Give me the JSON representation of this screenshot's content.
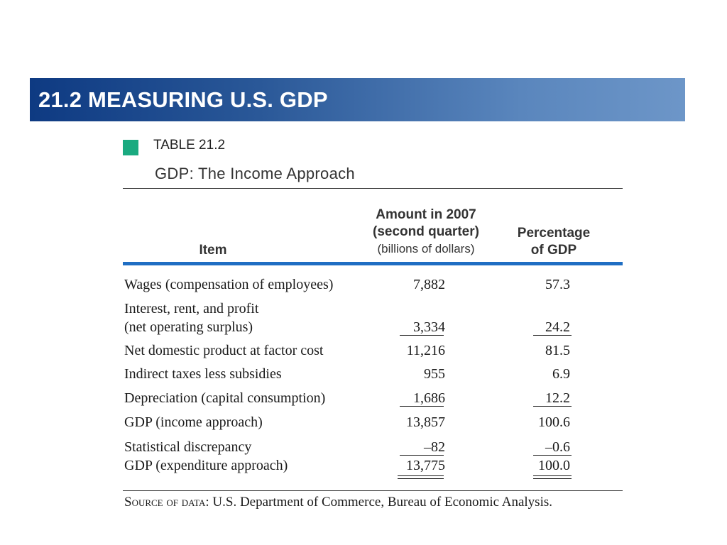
{
  "slide": {
    "title": "21.2 MEASURING U.S. GDP"
  },
  "table": {
    "number": "TABLE 21.2",
    "title": "GDP: The Income Approach",
    "headers": {
      "item": "Item",
      "amount_line1": "Amount in 2007",
      "amount_line2": "(second quarter)",
      "amount_line3": "(billions of dollars)",
      "pct_line1": "Percentage",
      "pct_line2": "of GDP"
    },
    "rows": [
      {
        "label": "Wages (compensation of employees)",
        "amount": "7,882",
        "pct": "57.3"
      },
      {
        "label": "Interest, rent, and profit",
        "label2": "(net operating surplus)",
        "amount": "3,334",
        "pct": "24.2"
      },
      {
        "label": "Net domestic product at factor cost",
        "amount": "11,216",
        "pct": "81.5"
      },
      {
        "label": "Indirect taxes less subsidies",
        "amount": "955",
        "pct": "6.9"
      },
      {
        "label": "Depreciation (capital consumption)",
        "amount": "1,686",
        "pct": "12.2"
      },
      {
        "label": "GDP (income approach)",
        "amount": "13,857",
        "pct": "100.6"
      },
      {
        "label": "Statistical discrepancy",
        "amount": "–82",
        "pct": "–0.6"
      },
      {
        "label": "GDP (expenditure approach)",
        "amount": "13,775",
        "pct": "100.0"
      }
    ],
    "source_label": "Source of data:",
    "source_text": " U.S. Department of Commerce, Bureau of Economic Analysis."
  }
}
